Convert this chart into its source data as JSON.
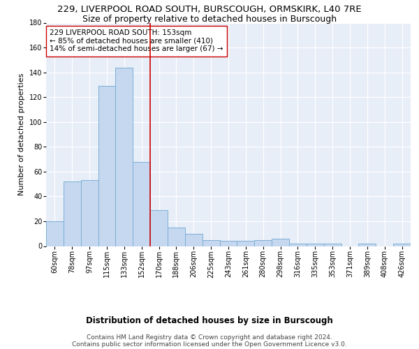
{
  "title": "229, LIVERPOOL ROAD SOUTH, BURSCOUGH, ORMSKIRK, L40 7RE",
  "subtitle": "Size of property relative to detached houses in Burscough",
  "xlabel": "Distribution of detached houses by size in Burscough",
  "ylabel": "Number of detached properties",
  "categories": [
    "60sqm",
    "78sqm",
    "97sqm",
    "115sqm",
    "133sqm",
    "152sqm",
    "170sqm",
    "188sqm",
    "206sqm",
    "225sqm",
    "243sqm",
    "261sqm",
    "280sqm",
    "298sqm",
    "316sqm",
    "335sqm",
    "353sqm",
    "371sqm",
    "389sqm",
    "408sqm",
    "426sqm"
  ],
  "values": [
    20,
    52,
    53,
    129,
    144,
    68,
    29,
    15,
    10,
    5,
    4,
    4,
    5,
    6,
    2,
    2,
    2,
    0,
    2,
    0,
    2
  ],
  "bar_color": "#c5d8f0",
  "bar_edge_color": "#7bafd4",
  "vline_x": 5.5,
  "vline_color": "#cc0000",
  "annotation_text": "229 LIVERPOOL ROAD SOUTH: 153sqm\n← 85% of detached houses are smaller (410)\n14% of semi-detached houses are larger (67) →",
  "annotation_box_color": "#ffffff",
  "annotation_box_edge": "#cc0000",
  "ylim": [
    0,
    180
  ],
  "yticks": [
    0,
    20,
    40,
    60,
    80,
    100,
    120,
    140,
    160,
    180
  ],
  "footer_text": "Contains HM Land Registry data © Crown copyright and database right 2024.\nContains public sector information licensed under the Open Government Licence v3.0.",
  "background_color": "#e8eef8",
  "grid_color": "#ffffff",
  "title_fontsize": 9.5,
  "subtitle_fontsize": 9,
  "xlabel_fontsize": 8.5,
  "ylabel_fontsize": 8,
  "tick_fontsize": 7,
  "annotation_fontsize": 7.5,
  "footer_fontsize": 6.5
}
